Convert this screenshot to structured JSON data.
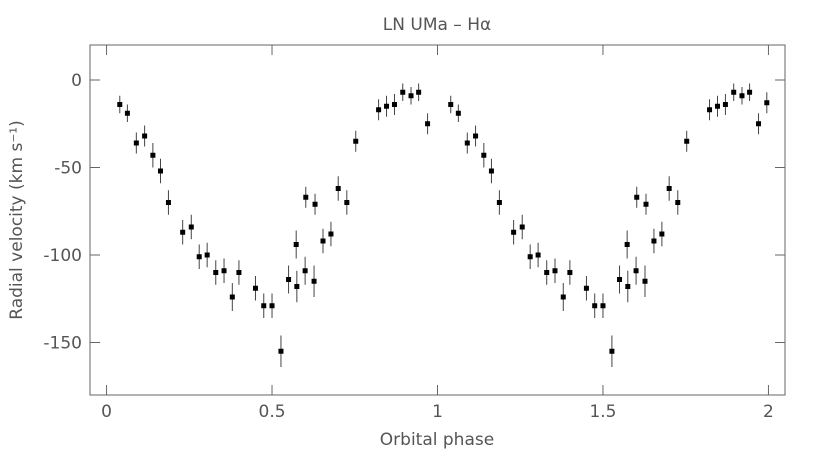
{
  "chart_data": {
    "type": "errorbar-scatter",
    "title": "LN UMa – Hα",
    "x_label": "Orbital phase",
    "y_label": "Radial velocity (km s⁻¹)",
    "xlim": [
      -0.05,
      2.05
    ],
    "ylim": [
      20,
      -180
    ],
    "xticks": [
      0,
      0.5,
      1,
      1.5,
      2
    ],
    "yticks": [
      0,
      -50,
      -100,
      -150
    ],
    "color": "#000000",
    "x": [
      0.04,
      0.063,
      0.09,
      0.115,
      0.14,
      0.163,
      0.187,
      0.23,
      0.256,
      0.28,
      0.304,
      0.33,
      0.355,
      0.38,
      0.4,
      0.45,
      0.475,
      0.5,
      0.527,
      0.55,
      0.573,
      0.575,
      0.6,
      0.602,
      0.627,
      0.63,
      0.654,
      0.678,
      0.7,
      0.726,
      0.753,
      0.822,
      0.846,
      0.87,
      0.895,
      0.92,
      0.943,
      0.97,
      1.04,
      1.063,
      1.09,
      1.115,
      1.14,
      1.163,
      1.187,
      1.23,
      1.256,
      1.28,
      1.304,
      1.33,
      1.355,
      1.38,
      1.4,
      1.45,
      1.475,
      1.5,
      1.527,
      1.55,
      1.573,
      1.575,
      1.6,
      1.602,
      1.627,
      1.63,
      1.654,
      1.678,
      1.7,
      1.726,
      1.753,
      1.822,
      1.846,
      1.87,
      1.895,
      1.92,
      1.943,
      1.97,
      1.995
    ],
    "y": [
      -14,
      -19,
      -36,
      -32,
      -43,
      -52,
      -70,
      -87,
      -84,
      -101,
      -100,
      -110,
      -109,
      -124,
      -110,
      -119,
      -129,
      -129,
      -155,
      -114,
      -94,
      -118,
      -109,
      -67,
      -115,
      -71,
      -92,
      -88,
      -62,
      -70,
      -35,
      -17,
      -15,
      -14,
      -7,
      -9,
      -7,
      -25,
      -14,
      -19,
      -36,
      -32,
      -43,
      -52,
      -70,
      -87,
      -84,
      -101,
      -100,
      -110,
      -109,
      -124,
      -110,
      -119,
      -129,
      -129,
      -155,
      -114,
      -94,
      -118,
      -109,
      -67,
      -115,
      -71,
      -92,
      -88,
      -62,
      -70,
      -35,
      -17,
      -15,
      -14,
      -7,
      -9,
      -7,
      -25,
      -13
    ],
    "errors": [
      5,
      5,
      6,
      6,
      7,
      7,
      7,
      7,
      7,
      7,
      7,
      7,
      7,
      8,
      7,
      7,
      7,
      7,
      9,
      8,
      8,
      9,
      8,
      6,
      9,
      6,
      7,
      7,
      7,
      7,
      6,
      6,
      6,
      6,
      5,
      5,
      5,
      6,
      5,
      5,
      6,
      6,
      7,
      7,
      7,
      7,
      7,
      7,
      7,
      7,
      7,
      8,
      7,
      7,
      7,
      7,
      9,
      8,
      8,
      9,
      8,
      6,
      9,
      6,
      7,
      7,
      7,
      7,
      6,
      6,
      6,
      6,
      5,
      5,
      5,
      6,
      6
    ]
  }
}
